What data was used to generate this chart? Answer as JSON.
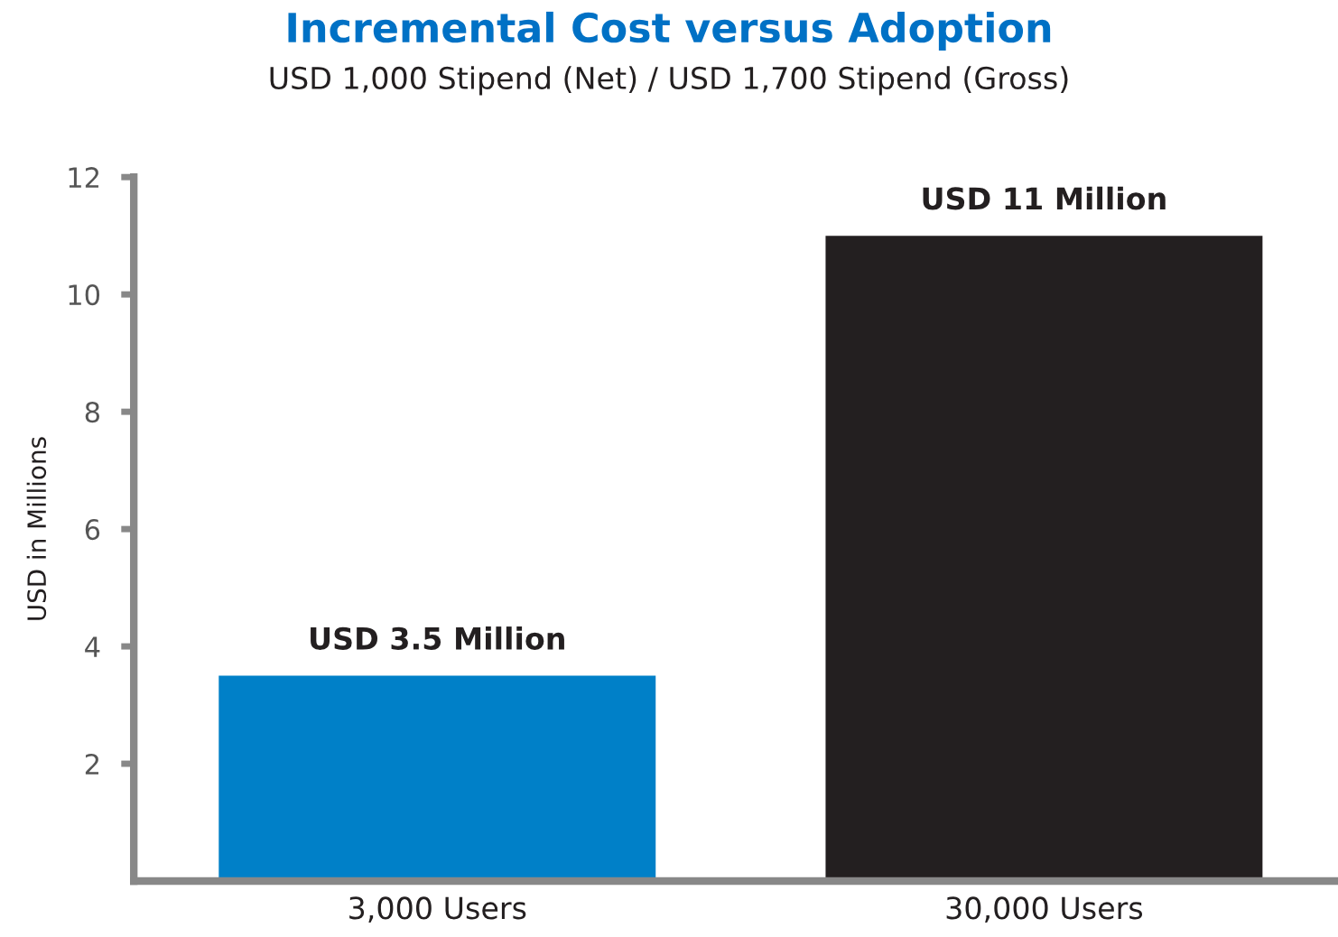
{
  "chart_data": {
    "type": "bar",
    "title": "Incremental Cost versus Adoption",
    "subtitle": "USD 1,000 Stipend (Net) / USD 1,700 Stipend (Gross)",
    "ylabel": "USD in Millions",
    "categories": [
      "3,000 Users",
      "30,000 Users"
    ],
    "values": [
      3.5,
      11
    ],
    "colors": [
      "#0080c8",
      "#231f20"
    ],
    "value_labels": [
      "USD 3.5 Million",
      "USD 11 Million"
    ],
    "ylim": [
      0,
      12
    ],
    "yticks": [
      2,
      4,
      6,
      8,
      10,
      12
    ],
    "grid": false,
    "legend": false
  }
}
